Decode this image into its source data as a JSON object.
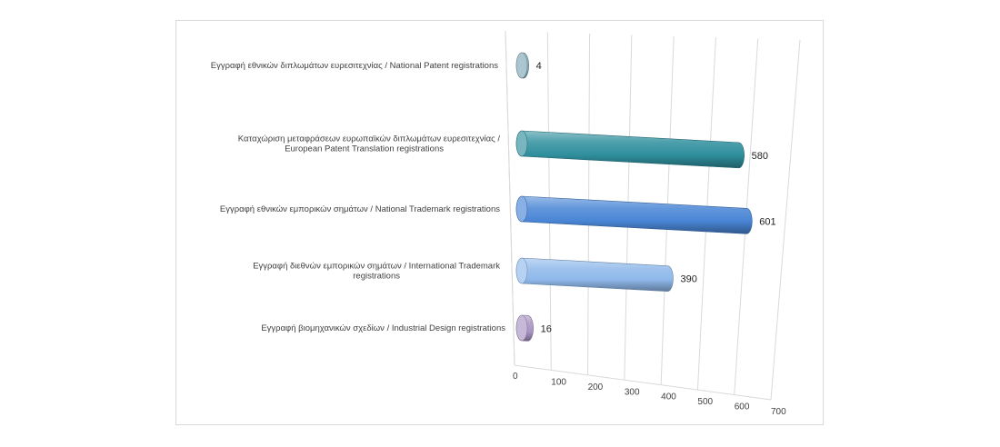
{
  "chart_data": {
    "type": "bar",
    "orientation": "horizontal",
    "style": "3d-cylinder",
    "categories": [
      [
        "Εγγραφή εθνικών  διπλωμάτων ευρεσιτεχνίας  / National Patent registrations"
      ],
      [
        "Καταχώριση  μεταφράσεων ευρωπαϊκών  διπλωμάτων ευρεσιτεχνίας  /",
        "European Patent Translation registrations"
      ],
      [
        "Εγγραφή εθνικών  εμπορικών σημάτων  / National Trademark registrations"
      ],
      [
        "Εγγραφή διεθνών  εμπορικών σημάτων  / International Trademark",
        "registrations"
      ],
      [
        "Εγγραφή βιομηχανικών  σχεδίων  / Industrial Design registrations"
      ]
    ],
    "values": [
      4,
      580,
      601,
      390,
      16
    ],
    "colors": [
      "#7fa6b8",
      "#2f8f9d",
      "#4a86d6",
      "#8fb8ea",
      "#a893c2"
    ],
    "xlim": [
      0,
      700
    ],
    "ticks": [
      0,
      100,
      200,
      300,
      400,
      500,
      600,
      700
    ],
    "grid": true,
    "legend": "none"
  }
}
